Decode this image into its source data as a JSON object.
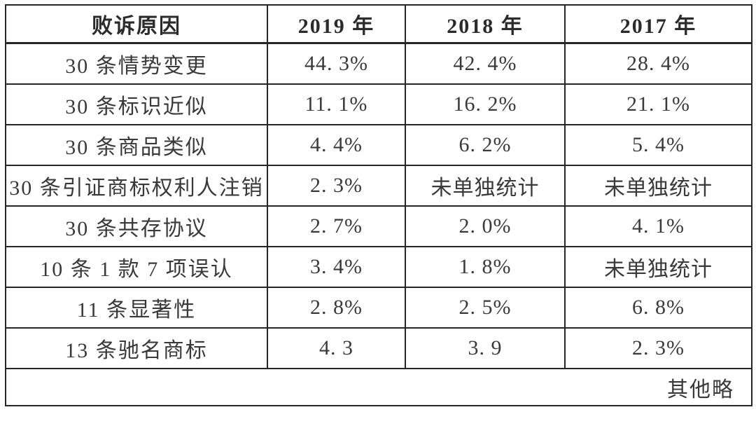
{
  "table": {
    "headers": [
      "败诉原因",
      "2019 年",
      "2018 年",
      "2017 年"
    ],
    "rows": [
      [
        "30 条情势变更",
        "44. 3%",
        "42. 4%",
        "28. 4%"
      ],
      [
        "30 条标识近似",
        "11. 1%",
        "16. 2%",
        "21. 1%"
      ],
      [
        "30 条商品类似",
        "4. 4%",
        "6. 2%",
        "5. 4%"
      ],
      [
        "30 条引证商标权利人注销",
        "2. 3%",
        "未单独统计",
        "未单独统计"
      ],
      [
        "30 条共存协议",
        "2. 7%",
        "2. 0%",
        "4. 1%"
      ],
      [
        "10 条 1 款 7 项误认",
        "3. 4%",
        "1. 8%",
        "未单独统计"
      ],
      [
        "11 条显著性",
        "2. 8%",
        "2. 5%",
        "6. 8%"
      ],
      [
        "13 条驰名商标",
        "4. 3",
        "3. 9",
        "2. 3%"
      ]
    ],
    "footer_note": "其他略"
  },
  "colors": {
    "border": "#262626",
    "text": "#3a3a3a",
    "header_text": "#2b2b2b",
    "background": "#ffffff"
  }
}
